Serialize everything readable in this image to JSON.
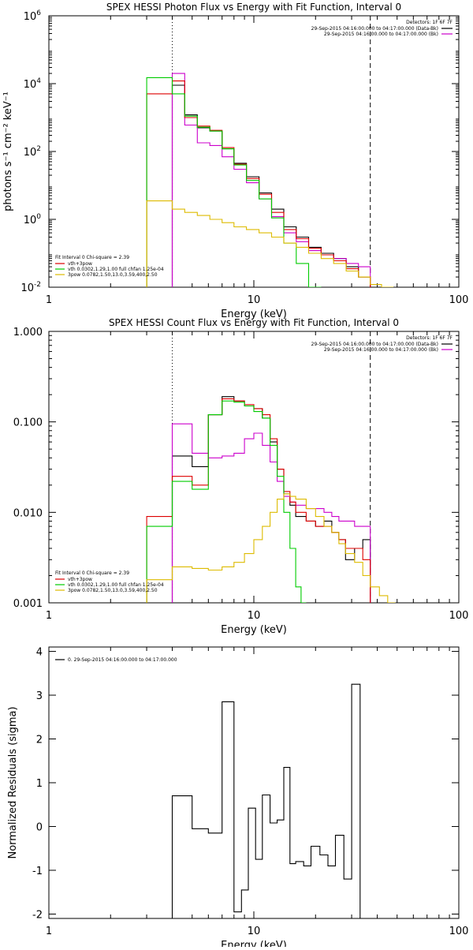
{
  "chart_data": [
    {
      "type": "line",
      "title": "SPEX HESSI Photon Flux vs Energy with Fit Function, Interval 0",
      "xlabel": "Energy (keV)",
      "ylabel": "photons s⁻¹ cm⁻² keV⁻¹",
      "xscale": "log",
      "yscale": "log",
      "xlim": [
        1,
        100
      ],
      "ylim": [
        0.01,
        1000000
      ],
      "x_ticks": [
        {
          "v": 1,
          "label": "1"
        },
        {
          "v": 10,
          "label": "10"
        },
        {
          "v": 100,
          "label": "100"
        }
      ],
      "y_ticks": [
        {
          "v": 0.01,
          "base": "10",
          "exp": "-2"
        },
        {
          "v": 1,
          "base": "10",
          "exp": "0"
        },
        {
          "v": 100,
          "base": "10",
          "exp": "2"
        },
        {
          "v": 10000,
          "base": "10",
          "exp": "4"
        },
        {
          "v": 1000000,
          "base": "10",
          "exp": "6"
        }
      ],
      "vlines": [
        {
          "x": 4.0,
          "style": "dotted"
        },
        {
          "x": 37.0,
          "style": "dashed"
        }
      ],
      "legend_top": {
        "header": "Detectors: 1F 6F 7F",
        "entries": [
          {
            "label": "29-Sep-2015 04:16:00.000 to 04:17:00.000 (Data-Bk)",
            "color": "#000000"
          },
          {
            "label": "29-Sep-2015 04:16:00.000 to 04:17:00.000 (Bk)",
            "color": "#cc00cc"
          }
        ]
      },
      "legend_bottom": {
        "header": "Fit Interval 0   Chi-square = 2.39",
        "entries": [
          {
            "label": "vth+3pow",
            "color": "#dd0000"
          },
          {
            "label": "vth 0.0302,1.29,1.00  full chfan 1.25e-04",
            "color": "#00cc00"
          },
          {
            "label": "3pow 0.0782,1.50,13.0,3.59,400,2.50",
            "color": "#ddbb00"
          }
        ]
      },
      "series": [
        {
          "color": "#000000",
          "edges": [
            4.0,
            4.6,
            5.3,
            6.1,
            7.0,
            8.0,
            9.2,
            10.6,
            12.2,
            14.0,
            16.1,
            18.5,
            21.3,
            24.5,
            28.2,
            32.4,
            37.0
          ],
          "values": [
            9000,
            1200,
            500,
            400,
            120,
            45,
            18,
            6,
            2,
            0.6,
            0.3,
            0.15,
            0.1,
            0.07,
            0.04,
            0.02
          ]
        },
        {
          "color": "#cc00cc",
          "edges": [
            4.0,
            4.6,
            5.3,
            6.1,
            7.0,
            8.0,
            9.2,
            10.6,
            12.2,
            14.0,
            16.1,
            18.5,
            21.3,
            24.5,
            28.2,
            32.4,
            37.0
          ],
          "values": [
            20000,
            600,
            180,
            150,
            70,
            30,
            12,
            4,
            1.2,
            0.4,
            0.22,
            0.12,
            0.09,
            0.07,
            0.05,
            0.04
          ]
        },
        {
          "color": "#dd0000",
          "edges": [
            3.0,
            4.0,
            4.6,
            5.3,
            6.1,
            7.0,
            8.0,
            9.2,
            10.6,
            12.2,
            14.0,
            16.1,
            18.5,
            21.3,
            24.5,
            28.2,
            32.4,
            37.0
          ],
          "values": [
            5000,
            12000,
            1000,
            560,
            420,
            130,
            42,
            16,
            5.5,
            1.6,
            0.5,
            0.27,
            0.14,
            0.09,
            0.06,
            0.035,
            0.02
          ]
        },
        {
          "color": "#00cc00",
          "edges": [
            3.0,
            4.0,
            4.6,
            5.3,
            6.1,
            7.0,
            8.0,
            9.2,
            10.6,
            12.2,
            14.0,
            16.1,
            18.5,
            21.3
          ],
          "values": [
            15000,
            5000,
            1100,
            520,
            400,
            120,
            40,
            14,
            4,
            1.1,
            0.2,
            0.05,
            0.01
          ]
        },
        {
          "color": "#ddbb00",
          "edges": [
            3.0,
            4.0,
            4.6,
            5.3,
            6.1,
            7.0,
            8.0,
            9.2,
            10.6,
            12.2,
            14.0,
            16.1,
            18.5,
            21.3,
            24.5,
            28.2,
            32.4,
            37.0,
            42.0,
            48.0
          ],
          "values": [
            3.5,
            2,
            1.6,
            1.3,
            1.0,
            0.8,
            0.6,
            0.5,
            0.4,
            0.3,
            0.2,
            0.15,
            0.1,
            0.07,
            0.05,
            0.03,
            0.02,
            0.012,
            0.009
          ]
        }
      ]
    },
    {
      "type": "line",
      "title": "SPEX HESSI Count Flux vs Energy with Fit Function, Interval 0",
      "xlabel": "Energy (keV)",
      "ylabel": "",
      "xscale": "log",
      "yscale": "log",
      "xlim": [
        1,
        100
      ],
      "ylim": [
        0.001,
        1.0
      ],
      "x_ticks": [
        {
          "v": 1,
          "label": "1"
        },
        {
          "v": 10,
          "label": "10"
        },
        {
          "v": 100,
          "label": "100"
        }
      ],
      "y_ticks": [
        {
          "v": 0.001,
          "label": "0.001"
        },
        {
          "v": 0.01,
          "label": "0.010"
        },
        {
          "v": 0.1,
          "label": "0.100"
        },
        {
          "v": 1.0,
          "label": "1.000"
        }
      ],
      "vlines": [
        {
          "x": 4.0,
          "style": "dotted"
        },
        {
          "x": 37.0,
          "style": "dashed"
        }
      ],
      "legend_top": {
        "header": "Detectors: 1F 6F 7F",
        "entries": [
          {
            "label": "29-Sep-2015 04:16:00.000 to 04:17:00.000 (Data-Bk)",
            "color": "#000000"
          },
          {
            "label": "29-Sep-2015 04:16:00.000 to 04:17:00.000 (Bk)",
            "color": "#cc00cc"
          }
        ]
      },
      "legend_bottom": {
        "header": "Fit Interval 0   Chi-square = 2.39",
        "entries": [
          {
            "label": "vth+3pow",
            "color": "#dd0000"
          },
          {
            "label": "vth 0.0302,1.29,1.00  full chfan 1.25e-04",
            "color": "#00cc00"
          },
          {
            "label": "3pow 0.0782,1.50,13.0,3.59,400,2.50",
            "color": "#ddbb00"
          }
        ]
      },
      "series": [
        {
          "color": "#000000",
          "edges": [
            4.0,
            5.0,
            6.0,
            7.0,
            8.0,
            9.0,
            10.0,
            11.0,
            12.0,
            13.0,
            14.0,
            15.0,
            16.0,
            18.0,
            20.0,
            22.0,
            24.0,
            26.0,
            28.0,
            31.0,
            34.0,
            37.0
          ],
          "values": [
            0.042,
            0.032,
            0.12,
            0.19,
            0.17,
            0.15,
            0.14,
            0.11,
            0.06,
            0.03,
            0.016,
            0.012,
            0.009,
            0.008,
            0.007,
            0.008,
            0.006,
            0.005,
            0.003,
            0.004,
            0.005
          ]
        },
        {
          "color": "#cc00cc",
          "edges": [
            4.0,
            5.0,
            6.0,
            7.0,
            8.0,
            9.0,
            10.0,
            11.0,
            12.0,
            13.0,
            14.0,
            15.0,
            16.0,
            18.0,
            20.0,
            22.0,
            24.0,
            26.0,
            28.0,
            31.0,
            34.0,
            37.0
          ],
          "values": [
            0.095,
            0.045,
            0.04,
            0.042,
            0.045,
            0.065,
            0.075,
            0.055,
            0.036,
            0.022,
            0.015,
            0.013,
            0.012,
            0.011,
            0.011,
            0.01,
            0.009,
            0.008,
            0.008,
            0.007,
            0.007
          ]
        },
        {
          "color": "#dd0000",
          "edges": [
            3.0,
            4.0,
            5.0,
            6.0,
            7.0,
            8.0,
            9.0,
            10.0,
            11.0,
            12.0,
            13.0,
            14.0,
            15.0,
            16.0,
            18.0,
            20.0,
            22.0,
            24.0,
            26.0,
            28.0,
            31.0,
            34.0,
            37.0
          ],
          "values": [
            0.009,
            0.025,
            0.02,
            0.12,
            0.18,
            0.17,
            0.155,
            0.14,
            0.12,
            0.065,
            0.03,
            0.017,
            0.013,
            0.01,
            0.008,
            0.007,
            0.007,
            0.006,
            0.005,
            0.004,
            0.004,
            0.003
          ]
        },
        {
          "color": "#00cc00",
          "edges": [
            3.0,
            4.0,
            5.0,
            6.0,
            7.0,
            8.0,
            9.0,
            10.0,
            11.0,
            12.0,
            13.0,
            14.0,
            15.0,
            16.0,
            17.0,
            18.0
          ],
          "values": [
            0.007,
            0.022,
            0.018,
            0.12,
            0.17,
            0.165,
            0.15,
            0.13,
            0.11,
            0.055,
            0.025,
            0.01,
            0.004,
            0.0015,
            0.001
          ]
        },
        {
          "color": "#ddbb00",
          "edges": [
            3.0,
            4.0,
            5.0,
            6.0,
            7.0,
            8.0,
            9.0,
            10.0,
            11.0,
            12.0,
            13.0,
            14.0,
            15.0,
            16.0,
            18.0,
            20.0,
            22.0,
            24.0,
            26.0,
            28.0,
            31.0,
            34.0,
            37.0,
            41.0,
            45.0,
            49.0
          ],
          "values": [
            0.0018,
            0.0025,
            0.0024,
            0.0023,
            0.0025,
            0.0028,
            0.0035,
            0.005,
            0.007,
            0.01,
            0.014,
            0.016,
            0.015,
            0.014,
            0.011,
            0.009,
            0.007,
            0.006,
            0.0045,
            0.0035,
            0.0028,
            0.002,
            0.0015,
            0.0012,
            0.001
          ]
        }
      ]
    },
    {
      "type": "line",
      "title": "",
      "xlabel": "Energy (keV)",
      "ylabel": "Normalized Residuals (sigma)",
      "xscale": "log",
      "yscale": "linear",
      "xlim": [
        1,
        100
      ],
      "ylim": [
        -2.1,
        4.1
      ],
      "x_ticks": [
        {
          "v": 1,
          "label": "1"
        },
        {
          "v": 10,
          "label": "10"
        },
        {
          "v": 100,
          "label": "100"
        }
      ],
      "y_ticks": [
        {
          "v": -2,
          "label": "-2"
        },
        {
          "v": -1,
          "label": "-1"
        },
        {
          "v": 0,
          "label": "0"
        },
        {
          "v": 1,
          "label": "1"
        },
        {
          "v": 2,
          "label": "2"
        },
        {
          "v": 3,
          "label": "3"
        },
        {
          "v": 4,
          "label": "4"
        }
      ],
      "legend_top_left": {
        "entries": [
          {
            "label": "0. 29-Sep-2015 04:16:00.000 to 04:17:00.000",
            "color": "#000000"
          }
        ]
      },
      "series": [
        {
          "color": "#000000",
          "edges": [
            4.0,
            5.0,
            6.0,
            7.0,
            8.0,
            8.7,
            9.4,
            10.2,
            11.0,
            12.0,
            13.0,
            14.0,
            15.0,
            16.0,
            17.5,
            19.0,
            21.0,
            23.0,
            25.0,
            27.5,
            30.0,
            33.0,
            36.5
          ],
          "values": [
            0.7,
            -0.05,
            -0.15,
            2.85,
            -1.95,
            -1.45,
            0.42,
            -0.75,
            0.72,
            0.08,
            0.15,
            1.35,
            -0.85,
            -0.8,
            -0.9,
            -0.45,
            -0.65,
            -0.9,
            -0.2,
            -1.2,
            3.25,
            -2.1
          ]
        }
      ]
    }
  ]
}
